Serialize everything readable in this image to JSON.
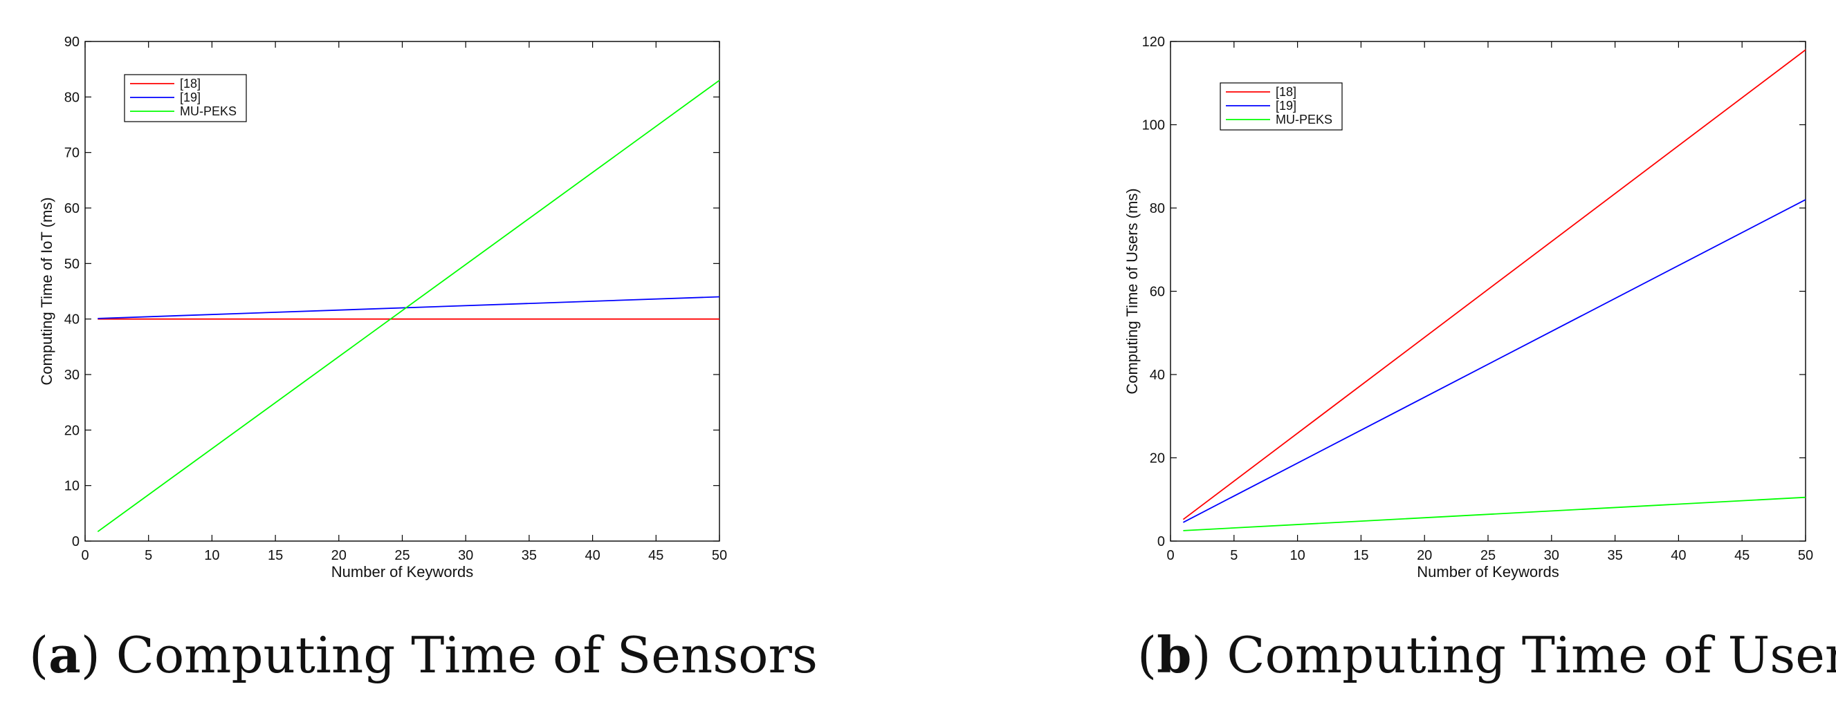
{
  "chart_data": [
    {
      "type": "line",
      "panel": "a",
      "title": "",
      "caption_label": "a",
      "caption_text": "Computing Time of Sensors",
      "xlabel": "Number of Keywords",
      "ylabel": "Computing Time of IoT (ms)",
      "xlim": [
        0,
        50
      ],
      "ylim": [
        0,
        90
      ],
      "xticks": [
        0,
        5,
        10,
        15,
        20,
        25,
        30,
        35,
        40,
        45,
        50
      ],
      "yticks": [
        0,
        10,
        20,
        30,
        40,
        50,
        60,
        70,
        80,
        90
      ],
      "grid": false,
      "legend_position": "top-left",
      "series": [
        {
          "name": "[18]",
          "color": "#ff0000",
          "x": [
            1,
            50
          ],
          "y": [
            40,
            40
          ]
        },
        {
          "name": "[19]",
          "color": "#0000ff",
          "x": [
            1,
            50
          ],
          "y": [
            40.1,
            44
          ]
        },
        {
          "name": "MU-PEKS",
          "color": "#00ff00",
          "x": [
            1,
            50
          ],
          "y": [
            1.7,
            83
          ]
        }
      ]
    },
    {
      "type": "line",
      "panel": "b",
      "title": "",
      "caption_label": "b",
      "caption_text": "Computing Time of Users",
      "xlabel": "Number of Keywords",
      "ylabel": "Computing Time of Users (ms)",
      "xlim": [
        0,
        50
      ],
      "ylim": [
        0,
        120
      ],
      "xticks": [
        0,
        5,
        10,
        15,
        20,
        25,
        30,
        35,
        40,
        45,
        50
      ],
      "yticks": [
        0,
        20,
        40,
        60,
        80,
        100,
        120
      ],
      "grid": false,
      "legend_position": "top-left",
      "series": [
        {
          "name": "[18]",
          "color": "#ff0000",
          "x": [
            1,
            50
          ],
          "y": [
            5.2,
            118
          ]
        },
        {
          "name": "[19]",
          "color": "#0000ff",
          "x": [
            1,
            50
          ],
          "y": [
            4.5,
            82
          ]
        },
        {
          "name": "MU-PEKS",
          "color": "#00ff00",
          "x": [
            1,
            50
          ],
          "y": [
            2.5,
            10.5
          ]
        }
      ]
    }
  ]
}
